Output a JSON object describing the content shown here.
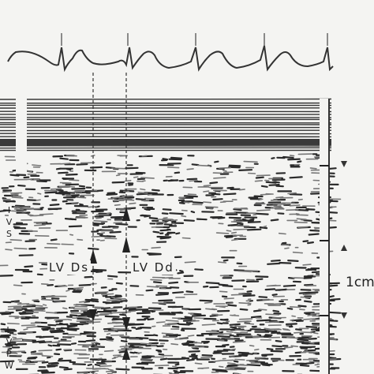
{
  "labels": {
    "lv_ds": "LV Ds",
    "lv_dd": "LV Dd",
    "scale": "1cm",
    "ivs": "IVS",
    "lvpw": "LVPW"
  }
}
